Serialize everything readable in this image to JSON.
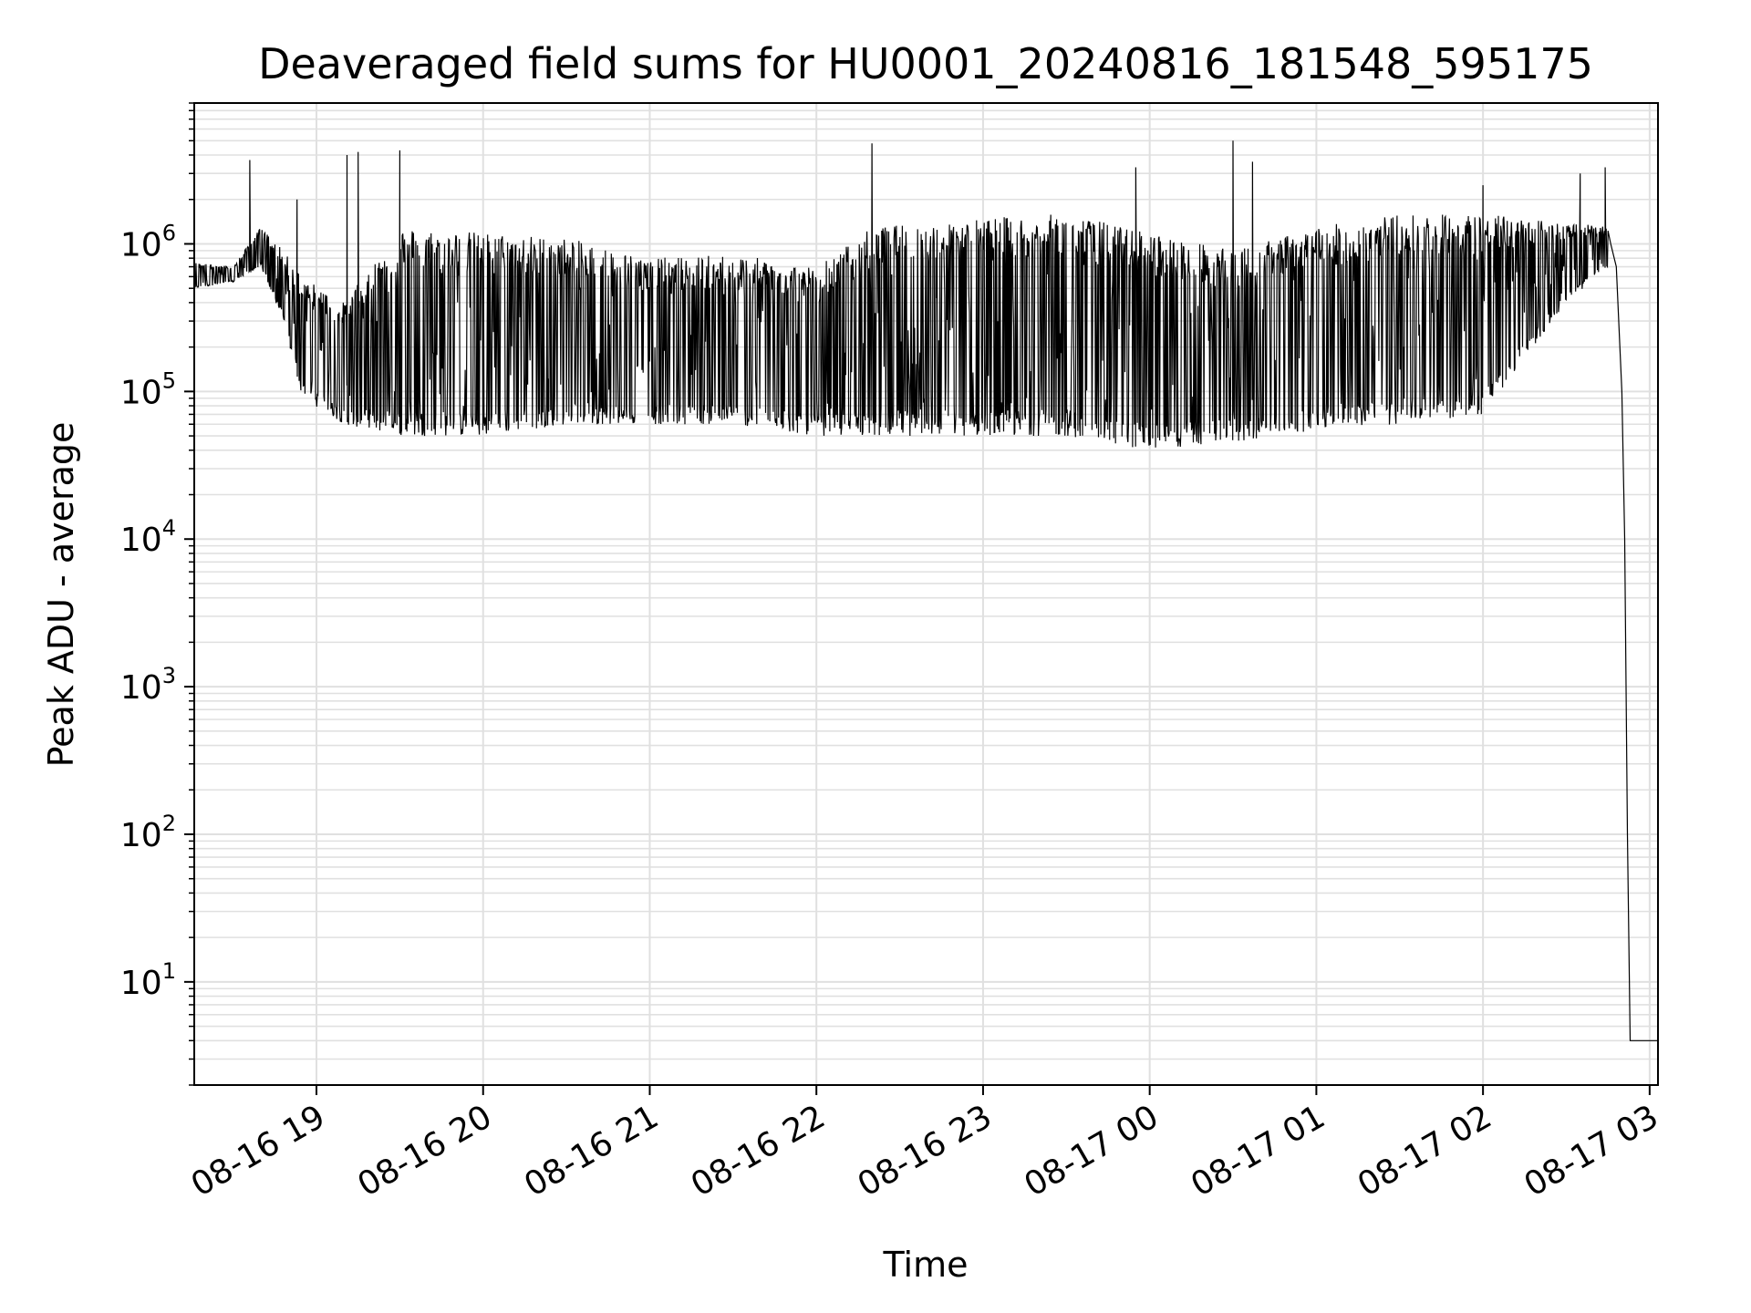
{
  "chart_data": {
    "type": "line",
    "title": "Deaveraged field sums for HU0001_20240816_181548_595175",
    "xlabel": "Time",
    "ylabel": "Peak ADU - average",
    "y_scale": "log",
    "ylim": [
      2,
      9000000
    ],
    "xlim": [
      "2024-08-16 18:16",
      "2024-08-17 03:03"
    ],
    "x_ticks": [
      {
        "label": "08-16 19",
        "at": "2024-08-16 19:00"
      },
      {
        "label": "08-16 20",
        "at": "2024-08-16 20:00"
      },
      {
        "label": "08-16 21",
        "at": "2024-08-16 21:00"
      },
      {
        "label": "08-16 22",
        "at": "2024-08-16 22:00"
      },
      {
        "label": "08-16 23",
        "at": "2024-08-16 23:00"
      },
      {
        "label": "08-17 00",
        "at": "2024-08-17 00:00"
      },
      {
        "label": "08-17 01",
        "at": "2024-08-17 01:00"
      },
      {
        "label": "08-17 02",
        "at": "2024-08-17 02:00"
      },
      {
        "label": "08-17 03",
        "at": "2024-08-17 03:00"
      }
    ],
    "y_ticks": [
      {
        "base": "10",
        "exp": "1",
        "value": 10
      },
      {
        "base": "10",
        "exp": "2",
        "value": 100
      },
      {
        "base": "10",
        "exp": "3",
        "value": 1000
      },
      {
        "base": "10",
        "exp": "4",
        "value": 10000
      },
      {
        "base": "10",
        "exp": "5",
        "value": 100000
      },
      {
        "base": "10",
        "exp": "6",
        "value": 1000000
      }
    ],
    "grid": true,
    "line_color": "#000000",
    "grid_color": "#e0e0e0",
    "series": [
      {
        "envelope": [
          {
            "t": "2024-08-16 18:16",
            "low": 500000,
            "high": 750000
          },
          {
            "t": "2024-08-16 18:30",
            "low": 550000,
            "high": 700000
          },
          {
            "t": "2024-08-16 18:40",
            "low": 700000,
            "high": 1300000
          },
          {
            "t": "2024-08-16 18:48",
            "low": 300000,
            "high": 900000
          },
          {
            "t": "2024-08-16 18:55",
            "low": 90000,
            "high": 600000
          },
          {
            "t": "2024-08-16 19:10",
            "low": 60000,
            "high": 400000
          },
          {
            "t": "2024-08-16 19:30",
            "low": 50000,
            "high": 1300000
          },
          {
            "t": "2024-08-16 20:00",
            "low": 50000,
            "high": 1200000
          },
          {
            "t": "2024-08-16 20:30",
            "low": 60000,
            "high": 1100000
          },
          {
            "t": "2024-08-16 21:00",
            "low": 60000,
            "high": 800000
          },
          {
            "t": "2024-08-16 21:30",
            "low": 60000,
            "high": 850000
          },
          {
            "t": "2024-08-16 22:00",
            "low": 50000,
            "high": 700000
          },
          {
            "t": "2024-08-16 22:20",
            "low": 50000,
            "high": 1300000
          },
          {
            "t": "2024-08-16 23:00",
            "low": 50000,
            "high": 1500000
          },
          {
            "t": "2024-08-16 23:30",
            "low": 50000,
            "high": 1600000
          },
          {
            "t": "2024-08-17 00:00",
            "low": 40000,
            "high": 1200000
          },
          {
            "t": "2024-08-17 00:30",
            "low": 45000,
            "high": 900000
          },
          {
            "t": "2024-08-17 01:00",
            "low": 55000,
            "high": 1300000
          },
          {
            "t": "2024-08-17 01:30",
            "low": 60000,
            "high": 1600000
          },
          {
            "t": "2024-08-17 02:00",
            "low": 70000,
            "high": 1600000
          },
          {
            "t": "2024-08-17 02:30",
            "low": 400000,
            "high": 1400000
          },
          {
            "t": "2024-08-17 02:45",
            "low": 700000,
            "high": 1300000
          }
        ],
        "spikes": [
          {
            "t": "2024-08-16 18:36",
            "value": 3700000
          },
          {
            "t": "2024-08-16 18:53",
            "value": 2000000
          },
          {
            "t": "2024-08-16 19:11",
            "value": 4000000
          },
          {
            "t": "2024-08-16 19:15",
            "value": 4200000
          },
          {
            "t": "2024-08-16 19:30",
            "value": 4300000
          },
          {
            "t": "2024-08-16 22:20",
            "value": 4800000
          },
          {
            "t": "2024-08-16 23:55",
            "value": 3300000
          },
          {
            "t": "2024-08-17 00:30",
            "value": 5000000
          },
          {
            "t": "2024-08-17 00:37",
            "value": 3600000
          },
          {
            "t": "2024-08-17 02:00",
            "value": 2500000
          },
          {
            "t": "2024-08-17 02:35",
            "value": 3000000
          },
          {
            "t": "2024-08-17 02:44",
            "value": 3300000
          }
        ],
        "decline": [
          {
            "t": "2024-08-17 02:46",
            "value": 1000000
          },
          {
            "t": "2024-08-17 02:48",
            "value": 700000
          },
          {
            "t": "2024-08-17 02:50",
            "value": 100000
          },
          {
            "t": "2024-08-17 02:51",
            "value": 10000
          },
          {
            "t": "2024-08-17 02:52",
            "value": 100
          },
          {
            "t": "2024-08-17 02:53",
            "value": 4
          },
          {
            "t": "2024-08-17 03:03",
            "value": 4
          }
        ]
      }
    ]
  }
}
